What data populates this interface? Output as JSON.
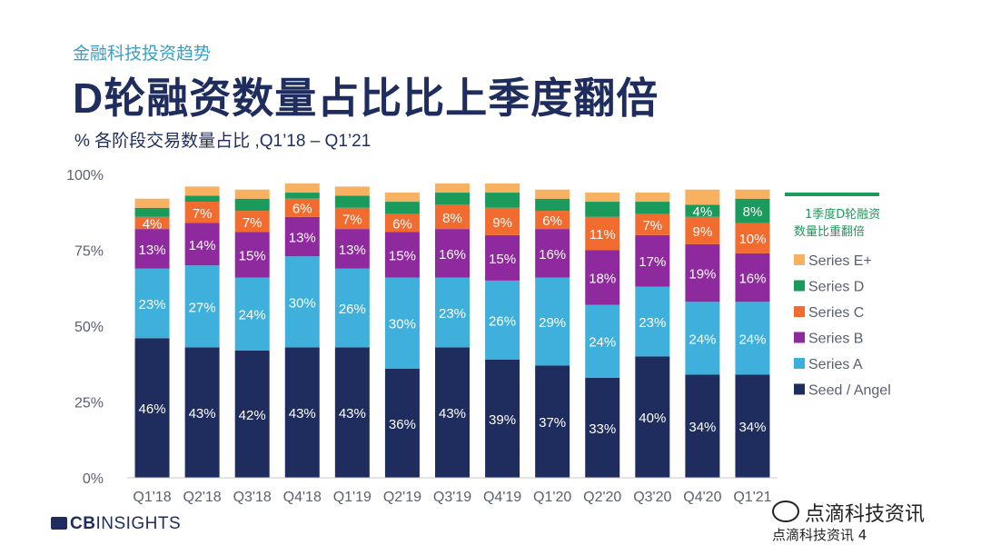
{
  "header": {
    "topic": "金融科技投资趋势",
    "title": "D轮融资数量占比比上季度翻倍",
    "subtitle": "% 各阶段交易数量占比 ,Q1’18 – Q1’21"
  },
  "chart_data": {
    "type": "bar",
    "stacked": true,
    "categories": [
      "Q1'18",
      "Q2'18",
      "Q3'18",
      "Q4'18",
      "Q1'19",
      "Q2'19",
      "Q3'19",
      "Q4'19",
      "Q1'20",
      "Q2'20",
      "Q3'20",
      "Q4'20",
      "Q1'21"
    ],
    "ylim": [
      0,
      100
    ],
    "yticks": [
      "0%",
      "25%",
      "50%",
      "75%",
      "100%"
    ],
    "grid": false,
    "legend_placement": "right",
    "series": [
      {
        "name": "Seed / Angel",
        "color": "#1f2d5e",
        "values": [
          46,
          43,
          42,
          43,
          43,
          36,
          43,
          39,
          37,
          33,
          40,
          34,
          34
        ]
      },
      {
        "name": "Series A",
        "color": "#3fb0dc",
        "values": [
          23,
          27,
          24,
          30,
          26,
          30,
          23,
          26,
          29,
          24,
          23,
          24,
          24
        ]
      },
      {
        "name": "Series B",
        "color": "#8e2a9e",
        "values": [
          13,
          14,
          15,
          13,
          13,
          15,
          16,
          15,
          16,
          18,
          17,
          19,
          16
        ]
      },
      {
        "name": "Series C",
        "color": "#f26b2f",
        "values": [
          4,
          7,
          7,
          6,
          7,
          6,
          8,
          9,
          6,
          11,
          7,
          9,
          10
        ]
      },
      {
        "name": "Series D",
        "color": "#1a9a5b",
        "values": [
          3,
          2,
          4,
          2,
          4,
          4,
          4,
          5,
          4,
          5,
          4,
          4,
          8
        ]
      },
      {
        "name": "Series E+",
        "color": "#f8b160",
        "values": [
          3,
          3,
          3,
          3,
          3,
          3,
          3,
          3,
          3,
          3,
          3,
          5,
          3
        ]
      }
    ],
    "data_labels": {
      "Seed / Angel": [
        "46%",
        "43%",
        "42%",
        "43%",
        "43%",
        "36%",
        "43%",
        "39%",
        "37%",
        "33%",
        "40%",
        "34%",
        "34%"
      ],
      "Series A": [
        "23%",
        "27%",
        "24%",
        "30%",
        "26%",
        "30%",
        "23%",
        "26%",
        "29%",
        "24%",
        "23%",
        "24%",
        "24%"
      ],
      "Series B": [
        "13%",
        "14%",
        "15%",
        "13%",
        "13%",
        "15%",
        "16%",
        "15%",
        "16%",
        "18%",
        "17%",
        "19%",
        "16%"
      ],
      "Series C": [
        "4%",
        "7%",
        "7%",
        "6%",
        "7%",
        "6%",
        "8%",
        "9%",
        "6%",
        "11%",
        "7%",
        "9%",
        "10%"
      ],
      "Series D": [
        "",
        "",
        "",
        "",
        "",
        "",
        "",
        "",
        "",
        "",
        "",
        "4%",
        "8%"
      ]
    },
    "annotation": {
      "text_lines": [
        "1季度D轮融资",
        "数量比重翻倍"
      ],
      "color": "#1a9a5b"
    }
  },
  "footer": {
    "logo_bold": "CB",
    "logo_light": "INSIGHTS",
    "watermark": "点滴科技资讯",
    "watermark_sub": "点滴科技资讯 4"
  }
}
